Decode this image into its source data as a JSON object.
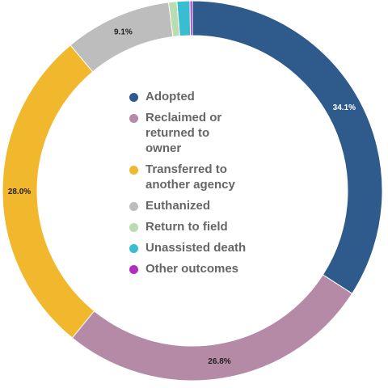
{
  "chart_data": {
    "type": "pie",
    "title": "",
    "donut": true,
    "legend_position": "center",
    "categories": [
      "Adopted",
      "Reclaimed or returned to owner",
      "Transferred to another agency",
      "Euthanized",
      "Return to field",
      "Unassisted death",
      "Other outcomes"
    ],
    "legend_labels": [
      "Adopted",
      "Reclaimed or\nreturned to\nowner",
      "Transferred to\nanother agency",
      "Euthanized",
      "Return to field",
      "Unassisted death",
      "Other outcomes"
    ],
    "values": [
      34.1,
      26.8,
      28.0,
      9.1,
      0.7,
      1.1,
      0.2
    ],
    "data_labels": [
      "34.1%",
      "26.8%",
      "28.0%",
      "9.1%",
      "",
      "",
      ""
    ],
    "colors": [
      "#2f5b8c",
      "#b48aa6",
      "#f2b82d",
      "#bdbdbd",
      "#b9dcb0",
      "#39bdd0",
      "#b22fc4"
    ]
  }
}
